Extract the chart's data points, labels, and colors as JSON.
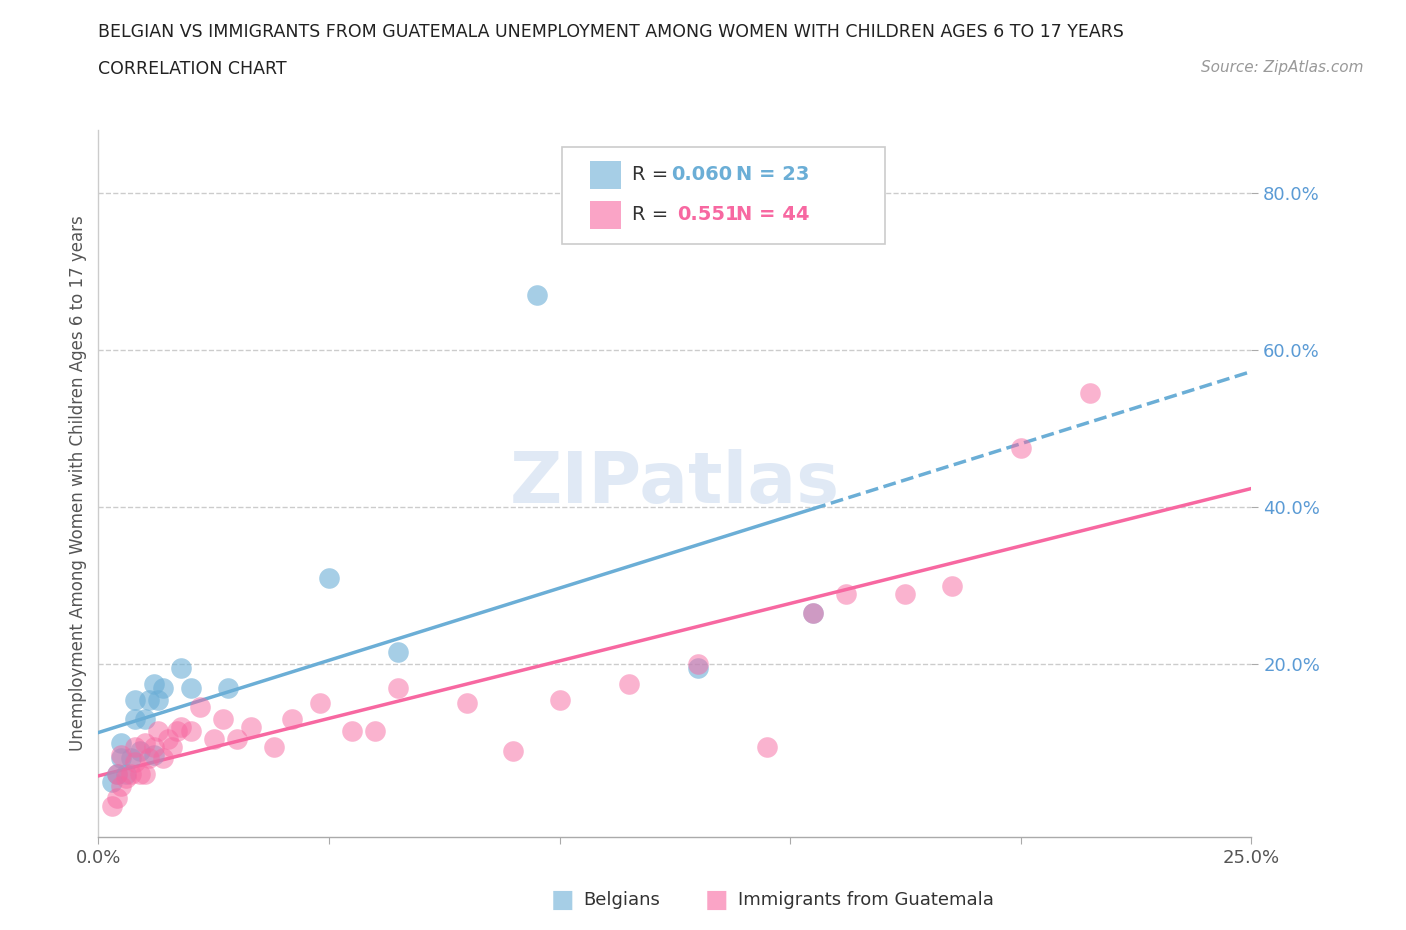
{
  "title_line1": "BELGIAN VS IMMIGRANTS FROM GUATEMALA UNEMPLOYMENT AMONG WOMEN WITH CHILDREN AGES 6 TO 17 YEARS",
  "title_line2": "CORRELATION CHART",
  "source_text": "Source: ZipAtlas.com",
  "ylabel": "Unemployment Among Women with Children Ages 6 to 17 years",
  "xlim": [
    0.0,
    0.25
  ],
  "ylim": [
    -0.02,
    0.88
  ],
  "xticks": [
    0.0,
    0.05,
    0.1,
    0.15,
    0.2,
    0.25
  ],
  "xtick_labels": [
    "0.0%",
    "",
    "",
    "",
    "",
    "25.0%"
  ],
  "ytick_positions": [
    0.2,
    0.4,
    0.6,
    0.8
  ],
  "ytick_labels": [
    "20.0%",
    "40.0%",
    "60.0%",
    "80.0%"
  ],
  "color_belgian": "#6baed6",
  "color_guatemala": "#f768a1",
  "legend_R_belgian": "0.060",
  "legend_N_belgian": "23",
  "legend_R_guatemala": "0.551",
  "legend_N_guatemala": "44",
  "belgians_x": [
    0.003,
    0.004,
    0.005,
    0.005,
    0.006,
    0.007,
    0.008,
    0.008,
    0.009,
    0.01,
    0.011,
    0.012,
    0.012,
    0.013,
    0.014,
    0.018,
    0.02,
    0.028,
    0.05,
    0.065,
    0.095,
    0.13,
    0.155
  ],
  "belgians_y": [
    0.05,
    0.06,
    0.08,
    0.1,
    0.06,
    0.08,
    0.13,
    0.155,
    0.09,
    0.13,
    0.155,
    0.085,
    0.175,
    0.155,
    0.17,
    0.195,
    0.17,
    0.17,
    0.31,
    0.215,
    0.67,
    0.195,
    0.265
  ],
  "guatemala_x": [
    0.003,
    0.004,
    0.004,
    0.005,
    0.005,
    0.006,
    0.007,
    0.008,
    0.008,
    0.009,
    0.01,
    0.01,
    0.011,
    0.012,
    0.013,
    0.014,
    0.015,
    0.016,
    0.017,
    0.018,
    0.02,
    0.022,
    0.025,
    0.027,
    0.03,
    0.033,
    0.038,
    0.042,
    0.048,
    0.055,
    0.06,
    0.065,
    0.08,
    0.09,
    0.1,
    0.115,
    0.13,
    0.145,
    0.155,
    0.162,
    0.175,
    0.185,
    0.2,
    0.215
  ],
  "guatemala_y": [
    0.02,
    0.03,
    0.06,
    0.045,
    0.085,
    0.055,
    0.06,
    0.075,
    0.095,
    0.06,
    0.06,
    0.1,
    0.08,
    0.095,
    0.115,
    0.08,
    0.105,
    0.095,
    0.115,
    0.12,
    0.115,
    0.145,
    0.105,
    0.13,
    0.105,
    0.12,
    0.095,
    0.13,
    0.15,
    0.115,
    0.115,
    0.17,
    0.15,
    0.09,
    0.155,
    0.175,
    0.2,
    0.095,
    0.265,
    0.29,
    0.29,
    0.3,
    0.475,
    0.545
  ]
}
